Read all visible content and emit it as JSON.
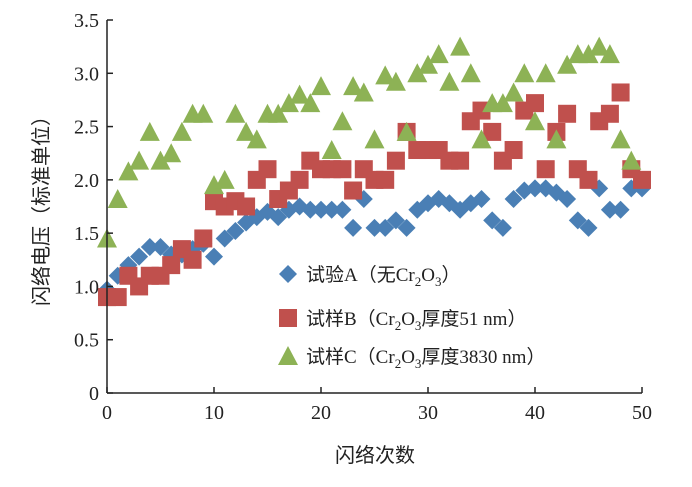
{
  "chart_data": {
    "type": "scatter",
    "title": "",
    "xlabel": "闪络次数",
    "ylabel": "闪络电压（标准单位）",
    "xlim": [
      0,
      50
    ],
    "ylim": [
      0,
      3.5
    ],
    "xticks": [
      "0",
      "10",
      "20",
      "30",
      "40",
      "50"
    ],
    "yticks": [
      "0",
      "0.5",
      "1.0",
      "1.5",
      "2.0",
      "2.5",
      "3.0",
      "3.5"
    ],
    "legend_placement": "bottom-center",
    "series": [
      {
        "name": "试验A（无Cr2O3）",
        "label_main": "试验A（无Cr",
        "label_sub1": "2",
        "label_mid": "O",
        "label_sub2": "3",
        "label_end": "）",
        "marker": "diamond",
        "color": "#4a7fb5",
        "values": [
          0.97,
          1.1,
          1.2,
          1.28,
          1.37,
          1.37,
          1.3,
          1.3,
          1.35,
          1.4,
          1.28,
          1.45,
          1.52,
          1.6,
          1.65,
          1.7,
          1.65,
          1.72,
          1.75,
          1.72,
          1.72,
          1.72,
          1.72,
          1.55,
          1.82,
          1.55,
          1.55,
          1.62,
          1.55,
          1.72,
          1.78,
          1.82,
          1.78,
          1.72,
          1.78,
          1.82,
          1.62,
          1.55,
          1.82,
          1.9,
          1.92,
          1.92,
          1.88,
          1.82,
          1.62,
          1.55,
          1.92,
          1.72,
          1.72,
          1.92,
          1.92
        ]
      },
      {
        "name": "试样B（Cr2O3厚度51 nm）",
        "label_main": "试样B（Cr",
        "label_sub1": "2",
        "label_mid": "O",
        "label_sub2": "3",
        "label_end": "厚度51 nm）",
        "marker": "square",
        "color": "#c0504d",
        "values": [
          0.9,
          0.9,
          1.1,
          1.0,
          1.1,
          1.1,
          1.2,
          1.35,
          1.25,
          1.45,
          1.8,
          1.75,
          1.8,
          1.75,
          2.0,
          2.1,
          1.82,
          1.9,
          2.0,
          2.18,
          2.1,
          2.1,
          2.1,
          1.9,
          2.1,
          2.0,
          2.0,
          2.18,
          2.45,
          2.28,
          2.28,
          2.28,
          2.18,
          2.18,
          2.55,
          2.65,
          2.45,
          2.18,
          2.28,
          2.65,
          2.72,
          2.1,
          2.45,
          2.62,
          2.1,
          2.0,
          2.55,
          2.62,
          2.82,
          2.1,
          2.0
        ]
      },
      {
        "name": "试样C（Cr2O3厚度3830 nm）",
        "label_main": "试样C（Cr",
        "label_sub1": "2",
        "label_mid": "O",
        "label_sub2": "3",
        "label_end": "厚度3830 nm）",
        "marker": "triangle",
        "color": "#8db255",
        "values": [
          1.45,
          1.82,
          2.08,
          2.18,
          2.45,
          2.18,
          2.25,
          2.45,
          2.62,
          2.62,
          1.95,
          2.0,
          2.62,
          2.45,
          2.38,
          2.62,
          2.62,
          2.72,
          2.8,
          2.72,
          2.88,
          2.28,
          2.55,
          2.88,
          2.82,
          2.38,
          2.98,
          2.92,
          2.45,
          3.0,
          3.08,
          3.18,
          2.92,
          3.25,
          3.0,
          2.38,
          2.72,
          2.72,
          2.82,
          3.0,
          2.55,
          3.0,
          2.38,
          3.08,
          3.18,
          3.18,
          3.25,
          3.18,
          2.38,
          2.18
        ]
      }
    ]
  }
}
